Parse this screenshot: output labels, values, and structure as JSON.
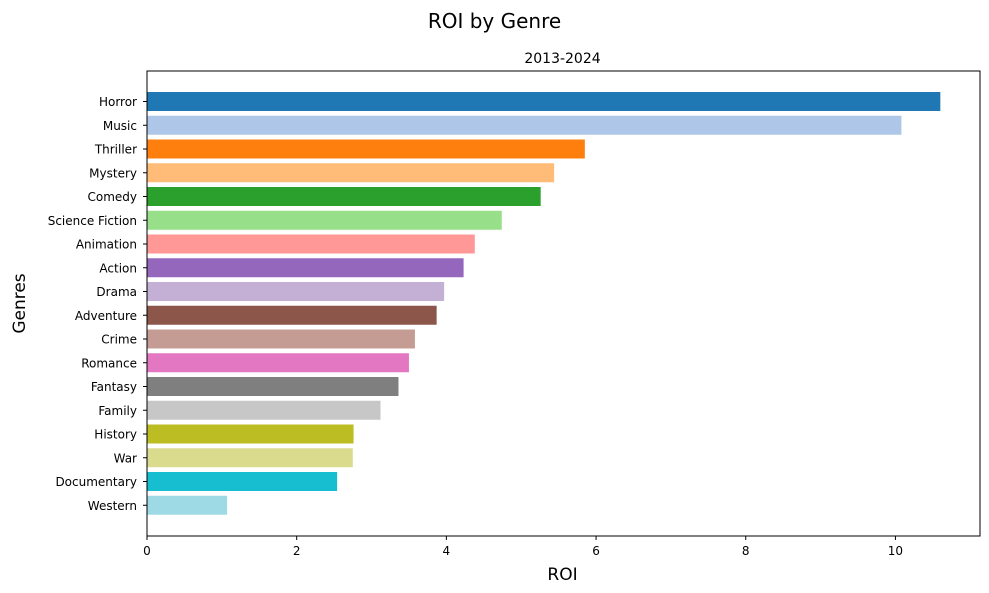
{
  "chart_data": {
    "type": "bar",
    "orientation": "horizontal",
    "title": "ROI by Genre",
    "subtitle": "2013-2024",
    "xlabel": "ROI",
    "ylabel": "Genres",
    "xlim": [
      0,
      11.13
    ],
    "xticks": [
      "0",
      "2",
      "4",
      "6",
      "8",
      "10"
    ],
    "grid": false,
    "categories": [
      "Horror",
      "Music",
      "Thriller",
      "Mystery",
      "Comedy",
      "Science Fiction",
      "Animation",
      "Action",
      "Drama",
      "Adventure",
      "Crime",
      "Romance",
      "Fantasy",
      "Family",
      "History",
      "War",
      "Documentary",
      "Western"
    ],
    "values": [
      10.6,
      10.08,
      5.85,
      5.44,
      5.26,
      4.74,
      4.38,
      4.23,
      3.97,
      3.87,
      3.58,
      3.5,
      3.36,
      3.12,
      2.76,
      2.75,
      2.54,
      1.07
    ],
    "colors": [
      "#1f77b4",
      "#aec7e8",
      "#ff7f0e",
      "#ffbb78",
      "#2ca02c",
      "#98df8a",
      "#ff9896",
      "#9467bd",
      "#c5b0d5",
      "#8c564b",
      "#c49c94",
      "#e377c2",
      "#7f7f7f",
      "#c7c7c7",
      "#bcbd22",
      "#dbdb8d",
      "#17becf",
      "#9edae5"
    ]
  }
}
